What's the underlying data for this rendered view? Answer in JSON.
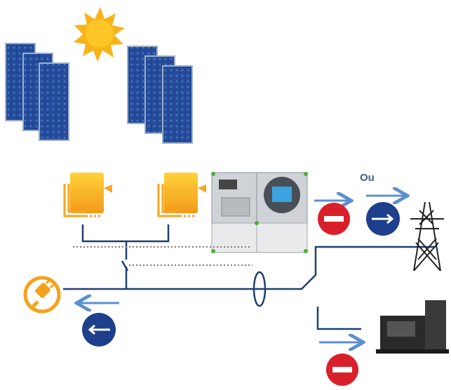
{
  "annotations": {
    "or_label": "Ou"
  }
}
